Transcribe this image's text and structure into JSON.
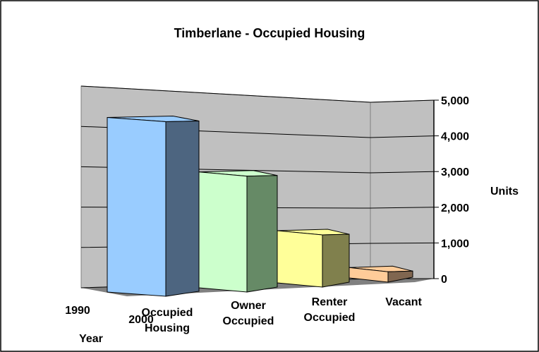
{
  "chart_data": {
    "type": "bar3d",
    "title": "Timberlane - Occupied Housing",
    "categories": [
      "Occupied Housing",
      "Owner Occupied",
      "Renter Occupied",
      "Vacant"
    ],
    "values": [
      4500,
      3100,
      1450,
      300
    ],
    "colors": [
      "#99ccff",
      "#ccffcc",
      "#ffff99",
      "#ffcc99"
    ],
    "side_colors": [
      "#4d6580",
      "#668a66",
      "#80804d",
      "#806650"
    ],
    "depth_labels": [
      "1990",
      "2000"
    ],
    "x_label": "Year",
    "y_label": "Units",
    "ylim": [
      0,
      5000
    ],
    "yticks": [
      0,
      {
        "value": 1000,
        "label": "1,000"
      },
      {
        "value": 2000,
        "label": "2,000"
      },
      {
        "value": 3000,
        "label": "3,000"
      },
      {
        "value": 4000,
        "label": "4,000"
      },
      {
        "value": 5000,
        "label": "5,000"
      }
    ],
    "grid": true
  }
}
